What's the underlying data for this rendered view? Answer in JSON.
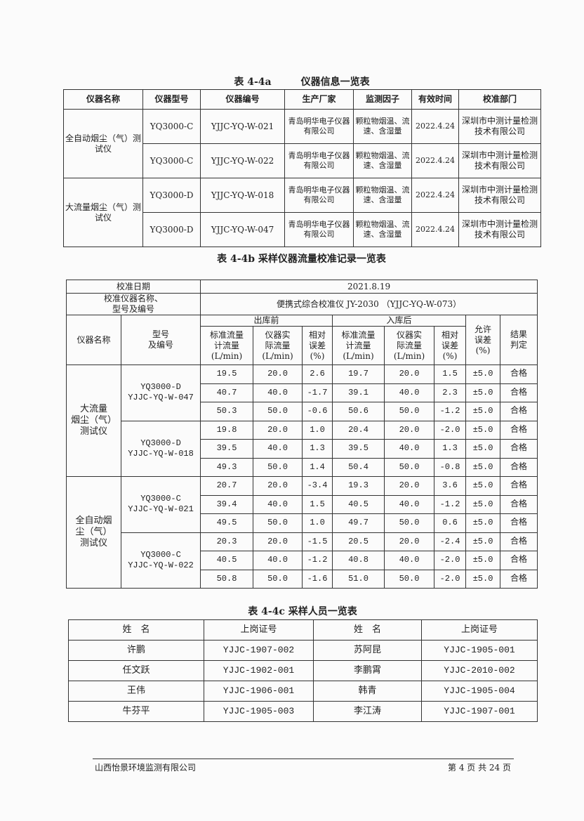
{
  "table_a": {
    "title": "表 4-4a　　　仪器信息一览表",
    "headers": [
      "仪器名称",
      "仪器型号",
      "仪器编号",
      "生产厂家",
      "监测因子",
      "有效时间",
      "校准部门"
    ],
    "groups": [
      {
        "name": "全自动烟尘（气）测试仪",
        "rows": [
          [
            "YQ3000-C",
            "YJJC-YQ-W-021",
            "青岛明华电子仪器有限公司",
            "颗粒物烟温、流速、含湿量",
            "2022.4.24",
            "深圳市中测计量检测技术有限公司"
          ],
          [
            "YQ3000-C",
            "YJJC-YQ-W-022",
            "青岛明华电子仪器有限公司",
            "颗粒物烟温、流速、含湿量",
            "2022.4.24",
            "深圳市中测计量检测技术有限公司"
          ]
        ]
      },
      {
        "name": "大流量烟尘（气）测试仪",
        "rows": [
          [
            "YQ3000-D",
            "YJJC-YQ-W-018",
            "青岛明华电子仪器有限公司",
            "颗粒物烟温、流速、含湿量",
            "2022.4.24",
            "深圳市中测计量检测技术有限公司"
          ],
          [
            "YQ3000-D",
            "YJJC-YQ-W-047",
            "青岛明华电子仪器有限公司",
            "颗粒物烟温、流速、含湿量",
            "2022.4.24",
            "深圳市中测计量检测技术有限公司"
          ]
        ]
      }
    ]
  },
  "table_b": {
    "title": "表 4-4b 采样仪器流量校准记录一览表",
    "date_label": "校准日期",
    "date": "2021.8.19",
    "instrument_label": "校准仪器名称、\n型号及编号",
    "instrument": "便携式综合校准仪 JY-2030 （YJJC-YQ-W-073）",
    "name_header": "仪器名称",
    "model_header": "型号\n及编号",
    "before_header": "出库前",
    "after_header": "入库后",
    "sub_headers": [
      "标准流量\n计流量\n(L/min)",
      "仪器实\n际流量\n(L/min)",
      "相对\n误差\n(%)",
      "标准流量\n计流量\n(L/min)",
      "仪器实\n际流量\n(L/min)",
      "相对\n误差\n(%)"
    ],
    "allowed_header": "允许\n误差\n(%)",
    "result_header": "结果\n判定",
    "groups": [
      {
        "name": "大流量\n烟尘（气）\n测试仪",
        "units": [
          {
            "model": "YQ3000-D\nYJJC-YQ-W-047",
            "rows": [
              [
                "19.5",
                "20.0",
                "2.6",
                "19.7",
                "20.0",
                "1.5",
                "±5.0",
                "合格"
              ],
              [
                "40.7",
                "40.0",
                "-1.7",
                "39.1",
                "40.0",
                "2.3",
                "±5.0",
                "合格"
              ],
              [
                "50.3",
                "50.0",
                "-0.6",
                "50.6",
                "50.0",
                "-1.2",
                "±5.0",
                "合格"
              ]
            ]
          },
          {
            "model": "YQ3000-D\nYJJC-YQ-W-018",
            "rows": [
              [
                "19.8",
                "20.0",
                "1.0",
                "20.4",
                "20.0",
                "-2.0",
                "±5.0",
                "合格"
              ],
              [
                "39.5",
                "40.0",
                "1.3",
                "39.5",
                "40.0",
                "1.3",
                "±5.0",
                "合格"
              ],
              [
                "49.3",
                "50.0",
                "1.4",
                "50.4",
                "50.0",
                "-0.8",
                "±5.0",
                "合格"
              ]
            ]
          }
        ]
      },
      {
        "name": "全自动烟\n尘（气）\n测试仪",
        "units": [
          {
            "model": "YQ3000-C\nYJJC-YQ-W-021",
            "rows": [
              [
                "20.7",
                "20.0",
                "-3.4",
                "19.3",
                "20.0",
                "3.6",
                "±5.0",
                "合格"
              ],
              [
                "39.4",
                "40.0",
                "1.5",
                "40.5",
                "40.0",
                "-1.2",
                "±5.0",
                "合格"
              ],
              [
                "49.5",
                "50.0",
                "1.0",
                "49.7",
                "50.0",
                "0.6",
                "±5.0",
                "合格"
              ]
            ]
          },
          {
            "model": "YQ3000-C\nYJJC-YQ-W-022",
            "rows": [
              [
                "20.3",
                "20.0",
                "-1.5",
                "20.5",
                "20.0",
                "-2.4",
                "±5.0",
                "合格"
              ],
              [
                "40.5",
                "40.0",
                "-1.2",
                "40.8",
                "40.0",
                "-2.0",
                "±5.0",
                "合格"
              ],
              [
                "50.8",
                "50.0",
                "-1.6",
                "51.0",
                "50.0",
                "-2.0",
                "±5.0",
                "合格"
              ]
            ]
          }
        ]
      }
    ]
  },
  "table_c": {
    "title": "表 4-4c 采样人员一览表",
    "headers": [
      "姓　名",
      "上岗证号",
      "姓　名",
      "上岗证号"
    ],
    "rows": [
      [
        "许鹏",
        "YJJC-1907-002",
        "苏阿昆",
        "YJJC-1905-001"
      ],
      [
        "任文跃",
        "YJJC-1902-001",
        "李鹏霄",
        "YJJC-2010-002"
      ],
      [
        "王伟",
        "YJJC-1906-001",
        "韩青",
        "YJJC-1905-004"
      ],
      [
        "牛芬平",
        "YJJC-1905-003",
        "李江涛",
        "YJJC-1907-001"
      ]
    ]
  },
  "footer": {
    "company": "山西怡景环境监测有限公司",
    "page": "第 4 页 共 24 页"
  }
}
